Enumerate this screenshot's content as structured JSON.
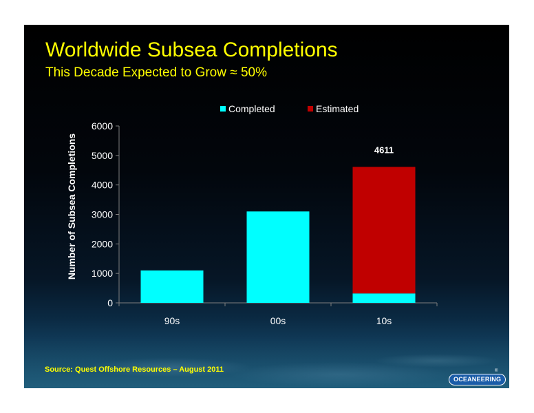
{
  "slide": {
    "title": "Worldwide Subsea Completions",
    "subtitle": "This Decade Expected to Grow ≈ 50%",
    "source": "Source:  Quest Offshore Resources – August 2011",
    "logo_text": "OCEANEERING",
    "logo_mark": "®"
  },
  "chart_data": {
    "type": "bar",
    "stacked": true,
    "categories": [
      "90s",
      "00s",
      "10s"
    ],
    "series": [
      {
        "name": "Completed",
        "color": "#00ffff",
        "values": [
          1100,
          3100,
          320
        ]
      },
      {
        "name": "Estimated",
        "color": "#c00000",
        "values": [
          0,
          0,
          4291
        ]
      }
    ],
    "data_labels": [
      {
        "category": "10s",
        "text": "4611"
      }
    ],
    "xlabel": "",
    "ylabel": "Number of Subsea Completions",
    "ylim": [
      0,
      6000
    ],
    "yticks": [
      0,
      1000,
      2000,
      3000,
      4000,
      5000,
      6000
    ],
    "grid": false,
    "legend": "top"
  }
}
